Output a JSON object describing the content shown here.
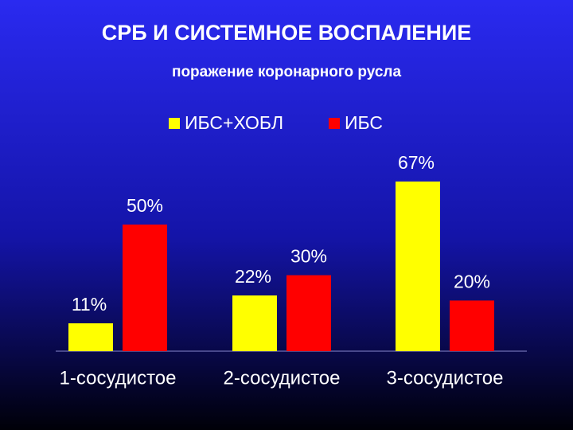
{
  "chart_data": {
    "type": "bar",
    "title": "СРБ И СИСТЕМНОЕ ВОСПАЛЕНИЕ",
    "subtitle": "поражение коронарного русла",
    "categories": [
      "1-сосудистое",
      "2-сосудистое",
      "3-сосудистое"
    ],
    "series": [
      {
        "name": "ИБС+ХОБЛ",
        "color": "#ffff00",
        "values": [
          11,
          22,
          67
        ],
        "value_labels": [
          "11%",
          "22%",
          "67%"
        ]
      },
      {
        "name": "ИБС",
        "color": "#ff0000",
        "values": [
          50,
          30,
          20
        ],
        "value_labels": [
          "50%",
          "30%",
          "20%"
        ]
      }
    ],
    "legend": "top"
  }
}
